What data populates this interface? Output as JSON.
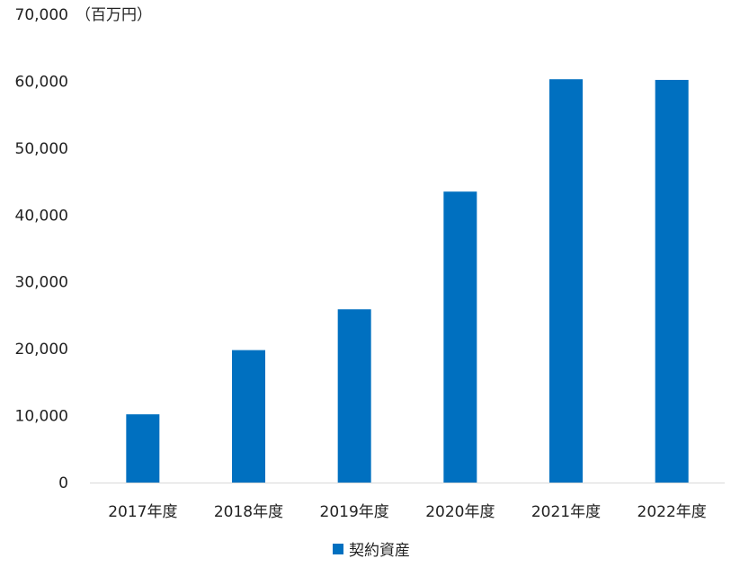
{
  "chart_data": {
    "type": "bar",
    "unit_label": "（百万円）",
    "categories": [
      "2017年度",
      "2018年度",
      "2019年度",
      "2020年度",
      "2021年度",
      "2022年度"
    ],
    "series": [
      {
        "name": "契約資産",
        "values": [
          10200,
          19800,
          25900,
          43500,
          60300,
          60200
        ],
        "color": "#0070C0"
      }
    ],
    "yticks": [
      "0",
      "10,000",
      "20,000",
      "30,000",
      "40,000",
      "50,000",
      "60,000",
      "70,000"
    ],
    "ylim": [
      0,
      70000
    ],
    "grid": false,
    "legend_position": "bottom"
  }
}
